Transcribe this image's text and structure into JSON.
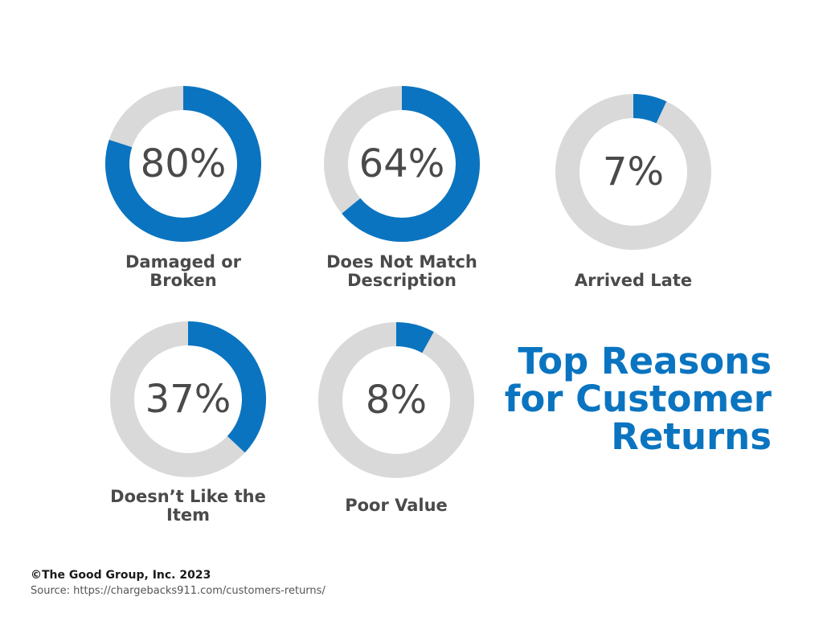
{
  "chart_data": {
    "type": "pie",
    "title": "Top Reasons for Customer Returns",
    "colors": {
      "filled": "#0a74c0",
      "track": "#d9d9d9",
      "text": "#4a4a4a",
      "title": "#0a74c0"
    },
    "items": [
      {
        "label": "Damaged or Broken",
        "value": 80,
        "display": "80%"
      },
      {
        "label": "Does Not Match Description",
        "value": 64,
        "display": "64%"
      },
      {
        "label": "Arrived Late",
        "value": 7,
        "display": "7%"
      },
      {
        "label": "Doesn’t Like the Item",
        "value": 37,
        "display": "37%"
      },
      {
        "label": "Poor Value",
        "value": 8,
        "display": "8%"
      }
    ]
  },
  "footer": {
    "copyright": "©The Good Group, Inc. 2023",
    "source": "Source: https://chargebacks911.com/customers-returns/"
  }
}
